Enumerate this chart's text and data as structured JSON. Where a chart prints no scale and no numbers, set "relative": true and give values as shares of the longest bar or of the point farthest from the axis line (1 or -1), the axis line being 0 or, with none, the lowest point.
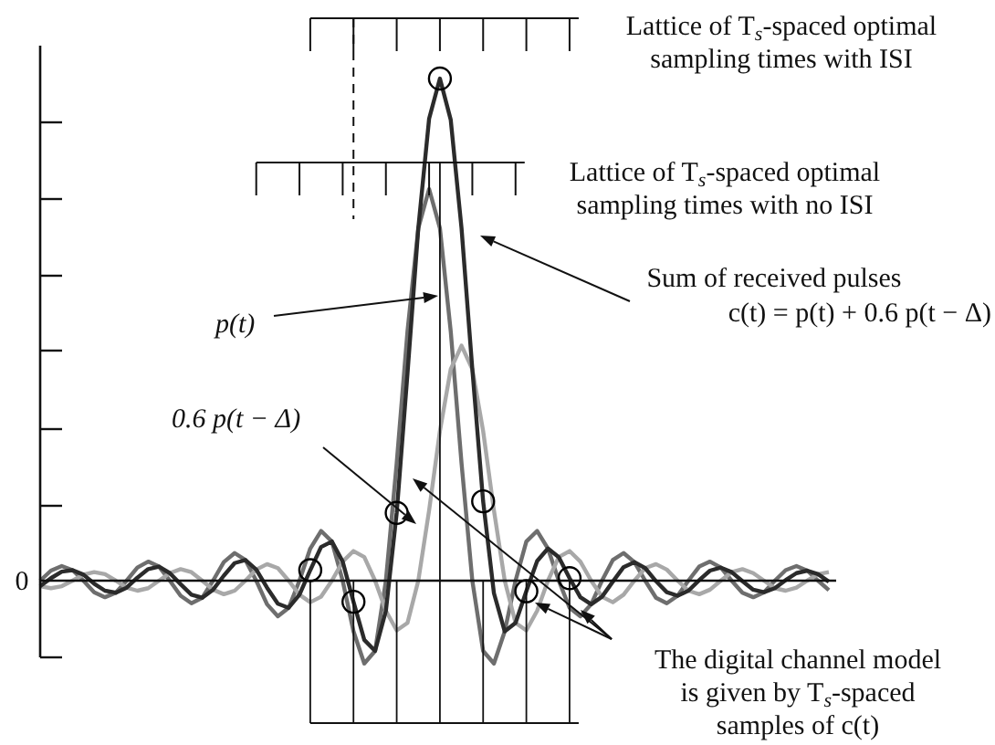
{
  "chart_data": {
    "type": "line",
    "relative": true,
    "categories": [
      null,
      null,
      null,
      null,
      null,
      null,
      null,
      null,
      null,
      null,
      null,
      null,
      null,
      null,
      null,
      null,
      null,
      null,
      null,
      null,
      null,
      null,
      null,
      null,
      null,
      null,
      null,
      null,
      null,
      null,
      null,
      null,
      null,
      null,
      null,
      null,
      null,
      null,
      null,
      null,
      null,
      null,
      null,
      null,
      null,
      null,
      null,
      null,
      null,
      null,
      null,
      null,
      null,
      null,
      null,
      null,
      null,
      null,
      null,
      null,
      null,
      null,
      null,
      null,
      null,
      null,
      null,
      null,
      null,
      null,
      null,
      null,
      null,
      null
    ],
    "series": [
      {
        "color": "#6e6e6e",
        "marker": "none",
        "values": [
          0,
          0.02,
          0.029,
          0.021,
          0,
          -0.023,
          -0.033,
          -0.024,
          0,
          0.026,
          0.038,
          0.028,
          0,
          -0.03,
          -0.045,
          -0.034,
          0,
          0.037,
          0.055,
          0.041,
          0,
          -0.047,
          -0.071,
          -0.054,
          0,
          0.064,
          0.099,
          0.078,
          0,
          -0.101,
          -0.165,
          -0.14,
          0,
          0.234,
          0.497,
          0.702,
          0.78,
          0.702,
          0.497,
          0.234,
          0,
          -0.14,
          -0.165,
          -0.101,
          0,
          0.078,
          0.099,
          0.064,
          0,
          -0.054,
          -0.071,
          -0.047,
          0,
          0.041,
          0.055,
          0.037,
          0,
          -0.034,
          -0.045,
          -0.03,
          0,
          0.028,
          0.038,
          0.026,
          0,
          -0.024,
          -0.033,
          -0.023,
          0,
          0.021,
          0.029,
          0.02,
          0,
          -0.019
        ]
      },
      {
        "color": "#a8a8a8",
        "marker": "none",
        "values": [
          -0.011,
          -0.015,
          -0.011,
          0,
          0.012,
          0.017,
          0.013,
          0,
          -0.014,
          -0.02,
          -0.015,
          0,
          0.015,
          0.023,
          0.017,
          0,
          -0.018,
          -0.027,
          -0.02,
          0,
          0.022,
          0.033,
          0.025,
          0,
          -0.028,
          -0.043,
          -0.032,
          0,
          0.038,
          0.059,
          0.047,
          0,
          -0.06,
          -0.099,
          -0.084,
          0,
          0.14,
          0.298,
          0.421,
          0.468,
          0.421,
          0.298,
          0.14,
          0,
          -0.084,
          -0.099,
          -0.06,
          0,
          0.047,
          0.059,
          0.038,
          0,
          -0.032,
          -0.043,
          -0.028,
          0,
          0.025,
          0.033,
          0.022,
          0,
          -0.02,
          -0.027,
          -0.018,
          0,
          0.017,
          0.023,
          0.015,
          0,
          -0.015,
          -0.02,
          -0.014,
          0,
          0.013,
          0.017
        ]
      },
      {
        "color": "#2b2b2b",
        "marker": "none",
        "values": [
          -0.011,
          0.005,
          0.018,
          0.021,
          0.012,
          -0.006,
          -0.02,
          -0.024,
          -0.014,
          0.006,
          0.023,
          0.028,
          0.015,
          -0.007,
          -0.028,
          -0.034,
          -0.018,
          0.01,
          0.035,
          0.041,
          0.022,
          -0.014,
          -0.046,
          -0.054,
          -0.028,
          0.021,
          0.067,
          0.078,
          0.038,
          -0.042,
          -0.118,
          -0.14,
          -0.06,
          0.135,
          0.413,
          0.702,
          0.92,
          1,
          0.918,
          0.702,
          0.421,
          0.158,
          -0.025,
          -0.101,
          -0.084,
          -0.021,
          0.039,
          0.064,
          0.047,
          0.005,
          -0.033,
          -0.047,
          -0.032,
          -0.002,
          0.027,
          0.037,
          0.025,
          -0.001,
          -0.023,
          -0.03,
          -0.02,
          0.001,
          0.02,
          0.026,
          0.017,
          -0.001,
          -0.018,
          -0.023,
          -0.015,
          0.001,
          0.015,
          0.02,
          0.013,
          -0.002
        ]
      }
    ],
    "annotations": [
      "Lattice of T$_{s}$-spaced optimal sampling times with ISI",
      "Lattice of T$_{s}$-spaced optimal sampling times with no ISI",
      "0",
      "p(t)",
      "0.6 p(t − Δ)",
      "Sum of received pulses c(t) = p(t) + 0.6 p(t − Δ)",
      "The digital channel model is given by T$_{s}$-spaced samples of c(t)"
    ]
  }
}
